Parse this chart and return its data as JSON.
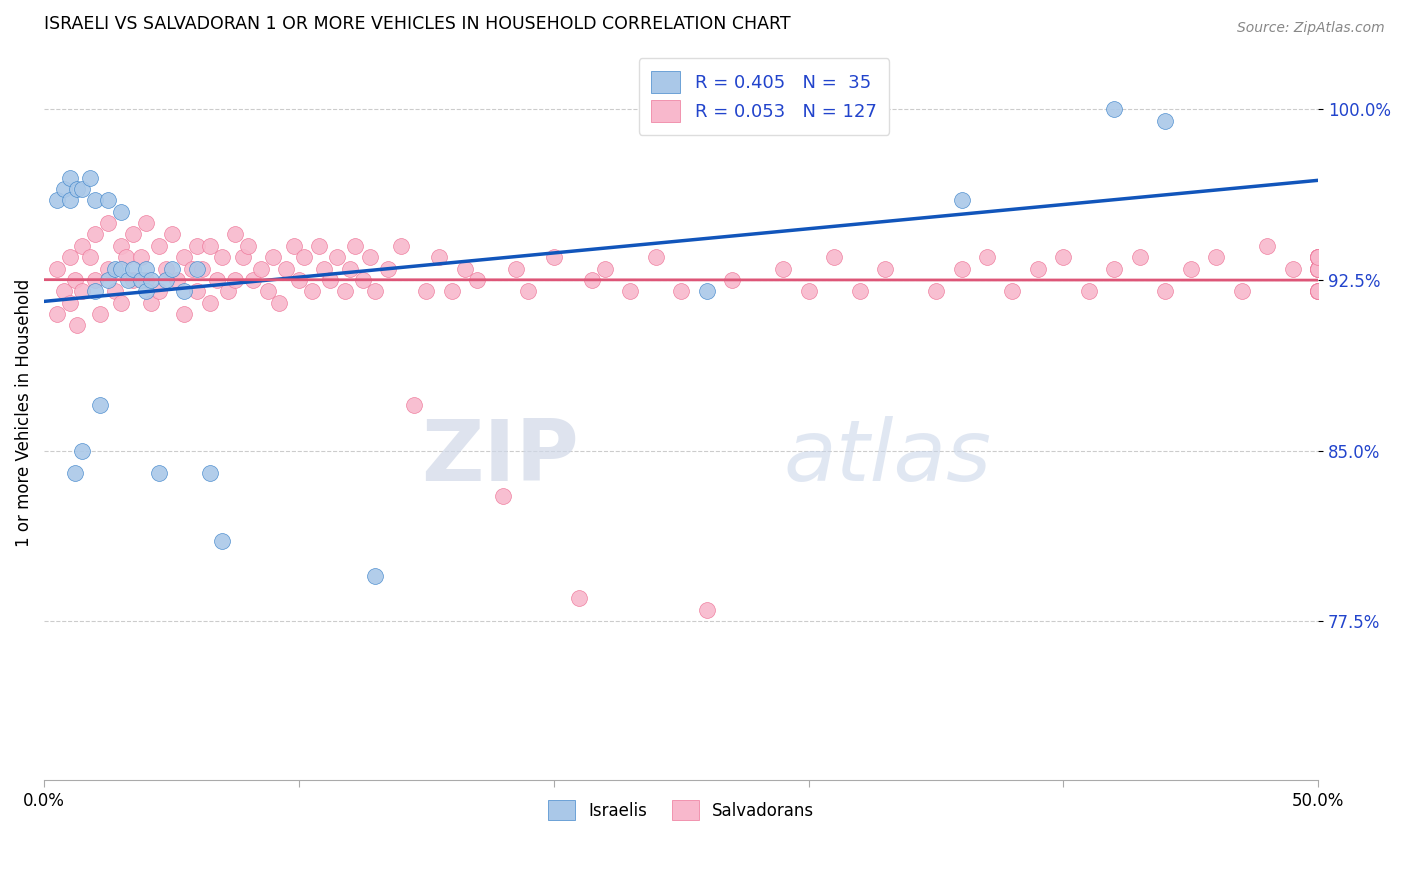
{
  "title": "ISRAELI VS SALVADORAN 1 OR MORE VEHICLES IN HOUSEHOLD CORRELATION CHART",
  "source_text": "Source: ZipAtlas.com",
  "ylabel": "1 or more Vehicles in Household",
  "yticks": [
    0.775,
    0.85,
    0.925,
    1.0
  ],
  "ytick_labels": [
    "77.5%",
    "85.0%",
    "92.5%",
    "100.0%"
  ],
  "xmin": 0.0,
  "xmax": 0.5,
  "ymin": 0.705,
  "ymax": 1.028,
  "israeli_face_color": "#aac8e8",
  "salvadoran_face_color": "#f8b8cc",
  "israeli_edge_color": "#4488cc",
  "salvadoran_edge_color": "#ee7799",
  "israeli_line_color": "#1155bb",
  "salvadoran_line_color": "#dd5577",
  "legend_text_color": "#2244cc",
  "israelis_label": "Israelis",
  "salvadorans_label": "Salvadorans",
  "watermark_zip": "ZIP",
  "watermark_atlas": "atlas",
  "dot_size": 130,
  "israeli_x": [
    0.005,
    0.008,
    0.01,
    0.01,
    0.012,
    0.013,
    0.015,
    0.015,
    0.018,
    0.02,
    0.02,
    0.022,
    0.025,
    0.025,
    0.028,
    0.03,
    0.03,
    0.033,
    0.035,
    0.038,
    0.04,
    0.04,
    0.042,
    0.045,
    0.048,
    0.05,
    0.055,
    0.06,
    0.065,
    0.07,
    0.13,
    0.26,
    0.36,
    0.42,
    0.44
  ],
  "israeli_y": [
    0.96,
    0.965,
    0.97,
    0.96,
    0.84,
    0.965,
    0.965,
    0.85,
    0.97,
    0.96,
    0.92,
    0.87,
    0.96,
    0.925,
    0.93,
    0.955,
    0.93,
    0.925,
    0.93,
    0.925,
    0.93,
    0.92,
    0.925,
    0.84,
    0.925,
    0.93,
    0.92,
    0.93,
    0.84,
    0.81,
    0.795,
    0.92,
    0.96,
    1.0,
    0.995
  ],
  "salvadoran_x": [
    0.005,
    0.005,
    0.008,
    0.01,
    0.01,
    0.012,
    0.013,
    0.015,
    0.015,
    0.018,
    0.02,
    0.02,
    0.022,
    0.025,
    0.025,
    0.028,
    0.03,
    0.03,
    0.032,
    0.035,
    0.035,
    0.038,
    0.04,
    0.04,
    0.042,
    0.045,
    0.045,
    0.048,
    0.05,
    0.052,
    0.055,
    0.055,
    0.058,
    0.06,
    0.06,
    0.062,
    0.065,
    0.065,
    0.068,
    0.07,
    0.072,
    0.075,
    0.075,
    0.078,
    0.08,
    0.082,
    0.085,
    0.088,
    0.09,
    0.092,
    0.095,
    0.098,
    0.1,
    0.102,
    0.105,
    0.108,
    0.11,
    0.112,
    0.115,
    0.118,
    0.12,
    0.122,
    0.125,
    0.128,
    0.13,
    0.135,
    0.14,
    0.145,
    0.15,
    0.155,
    0.16,
    0.165,
    0.17,
    0.18,
    0.185,
    0.19,
    0.2,
    0.21,
    0.215,
    0.22,
    0.23,
    0.24,
    0.25,
    0.26,
    0.27,
    0.29,
    0.3,
    0.31,
    0.32,
    0.33,
    0.35,
    0.36,
    0.37,
    0.38,
    0.39,
    0.4,
    0.41,
    0.42,
    0.43,
    0.44,
    0.45,
    0.46,
    0.47,
    0.48,
    0.49,
    0.5,
    0.5,
    0.5,
    0.5,
    0.5,
    0.5,
    0.5,
    0.5,
    0.5,
    0.5,
    0.5,
    0.5,
    0.5,
    0.5,
    0.5,
    0.5,
    0.5,
    0.5,
    0.5,
    0.5,
    0.5,
    0.5
  ],
  "salvadoran_y": [
    0.93,
    0.91,
    0.92,
    0.935,
    0.915,
    0.925,
    0.905,
    0.94,
    0.92,
    0.935,
    0.945,
    0.925,
    0.91,
    0.95,
    0.93,
    0.92,
    0.94,
    0.915,
    0.935,
    0.945,
    0.925,
    0.935,
    0.95,
    0.925,
    0.915,
    0.94,
    0.92,
    0.93,
    0.945,
    0.925,
    0.935,
    0.91,
    0.93,
    0.94,
    0.92,
    0.93,
    0.94,
    0.915,
    0.925,
    0.935,
    0.92,
    0.945,
    0.925,
    0.935,
    0.94,
    0.925,
    0.93,
    0.92,
    0.935,
    0.915,
    0.93,
    0.94,
    0.925,
    0.935,
    0.92,
    0.94,
    0.93,
    0.925,
    0.935,
    0.92,
    0.93,
    0.94,
    0.925,
    0.935,
    0.92,
    0.93,
    0.94,
    0.87,
    0.92,
    0.935,
    0.92,
    0.93,
    0.925,
    0.83,
    0.93,
    0.92,
    0.935,
    0.785,
    0.925,
    0.93,
    0.92,
    0.935,
    0.92,
    0.78,
    0.925,
    0.93,
    0.92,
    0.935,
    0.92,
    0.93,
    0.92,
    0.93,
    0.935,
    0.92,
    0.93,
    0.935,
    0.92,
    0.93,
    0.935,
    0.92,
    0.93,
    0.935,
    0.92,
    0.94,
    0.93,
    0.935,
    0.92,
    0.93,
    0.935,
    0.92,
    0.93,
    0.935,
    0.92,
    0.93,
    0.935,
    0.92,
    0.93,
    0.935,
    0.92,
    0.93,
    0.935,
    0.92,
    0.93,
    0.935,
    0.92,
    0.93,
    0.935
  ]
}
